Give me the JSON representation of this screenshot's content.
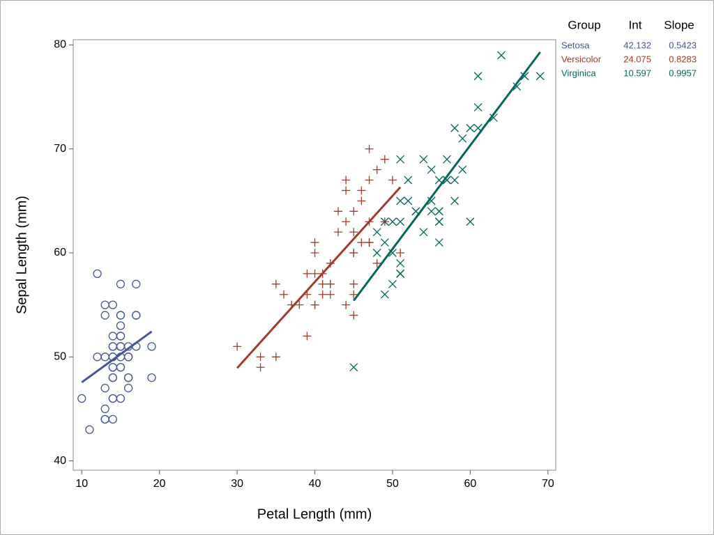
{
  "chart_data": {
    "type": "scatter",
    "x_label": "Petal Length (mm)",
    "y_label": "Sepal Length (mm)",
    "xlim": [
      8.9,
      71
    ],
    "ylim": [
      39.1,
      80.5
    ],
    "xticks": [
      10,
      20,
      30,
      40,
      50,
      60,
      70
    ],
    "yticks": [
      40,
      50,
      60,
      70,
      80
    ],
    "table_headers": [
      "Group",
      "Int",
      "Slope"
    ],
    "series": [
      {
        "name": "Setosa",
        "color": "#445694",
        "marker": "circle",
        "intercept": 42.132,
        "slope": 0.5423,
        "x": [
          14,
          14,
          13,
          15,
          14,
          17,
          14,
          15,
          14,
          15,
          15,
          16,
          14,
          11,
          12,
          15,
          13,
          14,
          17,
          15,
          17,
          15,
          10,
          17,
          19,
          16,
          16,
          15,
          14,
          16,
          16,
          15,
          15,
          14,
          15,
          12,
          13,
          14,
          13,
          15,
          13,
          13,
          13,
          16,
          19,
          14,
          16,
          14,
          15,
          14
        ],
        "y": [
          51,
          49,
          47,
          46,
          50,
          54,
          46,
          50,
          44,
          49,
          54,
          48,
          48,
          43,
          58,
          57,
          54,
          51,
          57,
          51,
          54,
          51,
          46,
          51,
          48,
          50,
          50,
          52,
          52,
          47,
          48,
          54,
          52,
          55,
          49,
          50,
          55,
          49,
          44,
          51,
          50,
          45,
          44,
          50,
          51,
          48,
          51,
          46,
          53,
          50
        ]
      },
      {
        "name": "Versicolor",
        "color": "#a23a2e",
        "marker": "plus",
        "intercept": 24.075,
        "slope": 0.8283,
        "x": [
          47,
          45,
          49,
          40,
          46,
          45,
          47,
          33,
          46,
          39,
          35,
          42,
          40,
          47,
          36,
          44,
          45,
          41,
          45,
          39,
          48,
          40,
          49,
          47,
          43,
          44,
          48,
          50,
          45,
          35,
          38,
          37,
          39,
          51,
          45,
          45,
          47,
          44,
          41,
          40,
          44,
          46,
          40,
          33,
          42,
          42,
          42,
          43,
          30,
          41
        ],
        "y": [
          70,
          64,
          69,
          55,
          65,
          57,
          63,
          49,
          66,
          52,
          50,
          59,
          60,
          61,
          56,
          67,
          56,
          58,
          62,
          56,
          59,
          61,
          63,
          61,
          64,
          66,
          68,
          67,
          60,
          57,
          55,
          55,
          58,
          60,
          54,
          60,
          67,
          63,
          56,
          55,
          55,
          61,
          58,
          50,
          56,
          57,
          57,
          62,
          51,
          57
        ]
      },
      {
        "name": "Virginica",
        "color": "#01665e",
        "marker": "x",
        "intercept": 10.597,
        "slope": 0.9957,
        "x": [
          60,
          51,
          59,
          56,
          58,
          66,
          45,
          63,
          58,
          61,
          51,
          53,
          55,
          50,
          51,
          53,
          55,
          67,
          69,
          50,
          57,
          49,
          67,
          49,
          57,
          60,
          48,
          49,
          56,
          58,
          61,
          64,
          56,
          51,
          56,
          61,
          56,
          55,
          48,
          54,
          56,
          51,
          51,
          59,
          57,
          52,
          50,
          52,
          54,
          51
        ],
        "y": [
          63,
          58,
          71,
          63,
          65,
          76,
          49,
          73,
          67,
          72,
          65,
          64,
          68,
          57,
          58,
          64,
          65,
          77,
          77,
          60,
          69,
          56,
          77,
          63,
          67,
          72,
          62,
          61,
          64,
          72,
          74,
          79,
          64,
          63,
          61,
          77,
          63,
          64,
          60,
          69,
          67,
          69,
          58,
          68,
          67,
          67,
          63,
          65,
          62,
          59
        ]
      }
    ]
  }
}
